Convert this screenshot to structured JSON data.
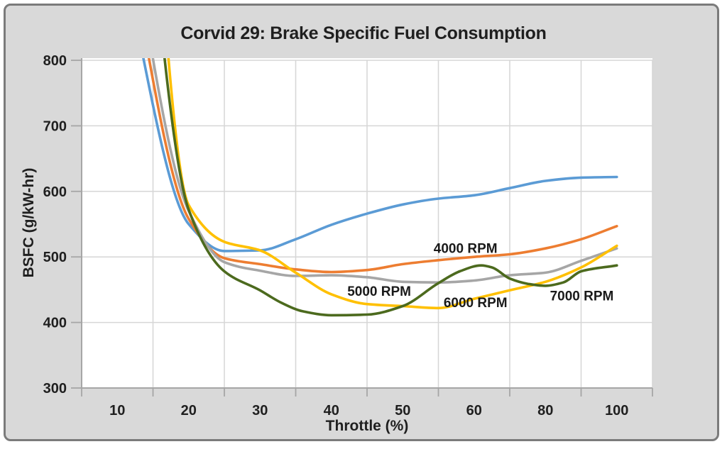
{
  "theme": {
    "panel_bg": "#d9d9d9",
    "plot_bg": "#ffffff",
    "panel_border": "#7b7b7b",
    "gridline": "#d6d6d6",
    "axis": "#a6a6a6",
    "text": "#1f1f1f",
    "annotation_text": "#1a1a1a"
  },
  "chart_data": {
    "type": "line",
    "title": "Corvid 29: Brake Specific Fuel Consumption",
    "xlabel": "Throttle (%)",
    "ylabel": "BSFC (g/kW-hr)",
    "grid": true,
    "legend_position": "none (inline curve labels)",
    "x_axis": {
      "type": "category",
      "tick_labels": [
        "10",
        "20",
        "30",
        "40",
        "50",
        "60",
        "80",
        "100"
      ],
      "tick_values": [
        10,
        20,
        30,
        40,
        50,
        60,
        80,
        100
      ]
    },
    "y_axis": {
      "min": 300,
      "max": 800,
      "tick_step": 100,
      "tick_labels": [
        "800",
        "700",
        "600",
        "500",
        "400",
        "300"
      ],
      "tick_values": [
        800,
        700,
        600,
        500,
        400,
        300
      ]
    },
    "series": [
      {
        "key": "blue-unlabeled",
        "label": null,
        "color": "#5B9BD5",
        "points": [
          [
            10,
            990
          ],
          [
            20,
            550
          ],
          [
            25,
            509
          ],
          [
            30,
            510
          ],
          [
            35,
            527
          ],
          [
            40,
            549
          ],
          [
            45,
            566
          ],
          [
            50,
            580
          ],
          [
            55,
            589
          ],
          [
            60,
            594
          ],
          [
            70,
            605
          ],
          [
            80,
            616
          ],
          [
            90,
            621
          ],
          [
            100,
            622
          ]
        ]
      },
      {
        "key": "4000rpm",
        "label": "4000 RPM",
        "color": "#ED7D31",
        "points": [
          [
            10,
            1060
          ],
          [
            20,
            558
          ],
          [
            25,
            498
          ],
          [
            30,
            489
          ],
          [
            35,
            481
          ],
          [
            40,
            477
          ],
          [
            45,
            480
          ],
          [
            50,
            489
          ],
          [
            55,
            495
          ],
          [
            60,
            500
          ],
          [
            70,
            504
          ],
          [
            80,
            513
          ],
          [
            90,
            527
          ],
          [
            100,
            547
          ]
        ]
      },
      {
        "key": "5000rpm",
        "label": "5000 RPM",
        "color": "#A6A6A6",
        "points": [
          [
            10,
            1110
          ],
          [
            20,
            570
          ],
          [
            25,
            492
          ],
          [
            30,
            479
          ],
          [
            35,
            471
          ],
          [
            40,
            472
          ],
          [
            45,
            469
          ],
          [
            50,
            462
          ],
          [
            55,
            461
          ],
          [
            60,
            464
          ],
          [
            70,
            472
          ],
          [
            80,
            476
          ],
          [
            90,
            494
          ],
          [
            100,
            513
          ]
        ]
      },
      {
        "key": "6000rpm",
        "label": "6000 RPM",
        "color": "#FFC000",
        "points": [
          [
            10,
            2000
          ],
          [
            20,
            579
          ],
          [
            25,
            523
          ],
          [
            30,
            510
          ],
          [
            35,
            476
          ],
          [
            40,
            443
          ],
          [
            45,
            428
          ],
          [
            50,
            425
          ],
          [
            55,
            422
          ],
          [
            60,
            436
          ],
          [
            70,
            449
          ],
          [
            80,
            462
          ],
          [
            90,
            484
          ],
          [
            100,
            517
          ]
        ]
      },
      {
        "key": "7000rpm",
        "label": "7000 RPM",
        "color": "#4C6A1E",
        "points": [
          [
            10,
            1560
          ],
          [
            20,
            572
          ],
          [
            25,
            478
          ],
          [
            30,
            449
          ],
          [
            33,
            430
          ],
          [
            36,
            417
          ],
          [
            40,
            411
          ],
          [
            45,
            412
          ],
          [
            50,
            425
          ],
          [
            55,
            460
          ],
          [
            58,
            478
          ],
          [
            62,
            487
          ],
          [
            65,
            484
          ],
          [
            70,
            467
          ],
          [
            75,
            459
          ],
          [
            80,
            456
          ],
          [
            85,
            461
          ],
          [
            90,
            478
          ],
          [
            100,
            487
          ]
        ]
      }
    ],
    "annotations": [
      {
        "text": "4000 RPM",
        "t": 58.8,
        "v": 514
      },
      {
        "text": "5000 RPM",
        "t": 46.7,
        "v": 448
      },
      {
        "text": "6000 RPM",
        "t": 60.4,
        "v": 431
      },
      {
        "text": "7000 RPM",
        "t": 90.2,
        "v": 441
      }
    ]
  }
}
